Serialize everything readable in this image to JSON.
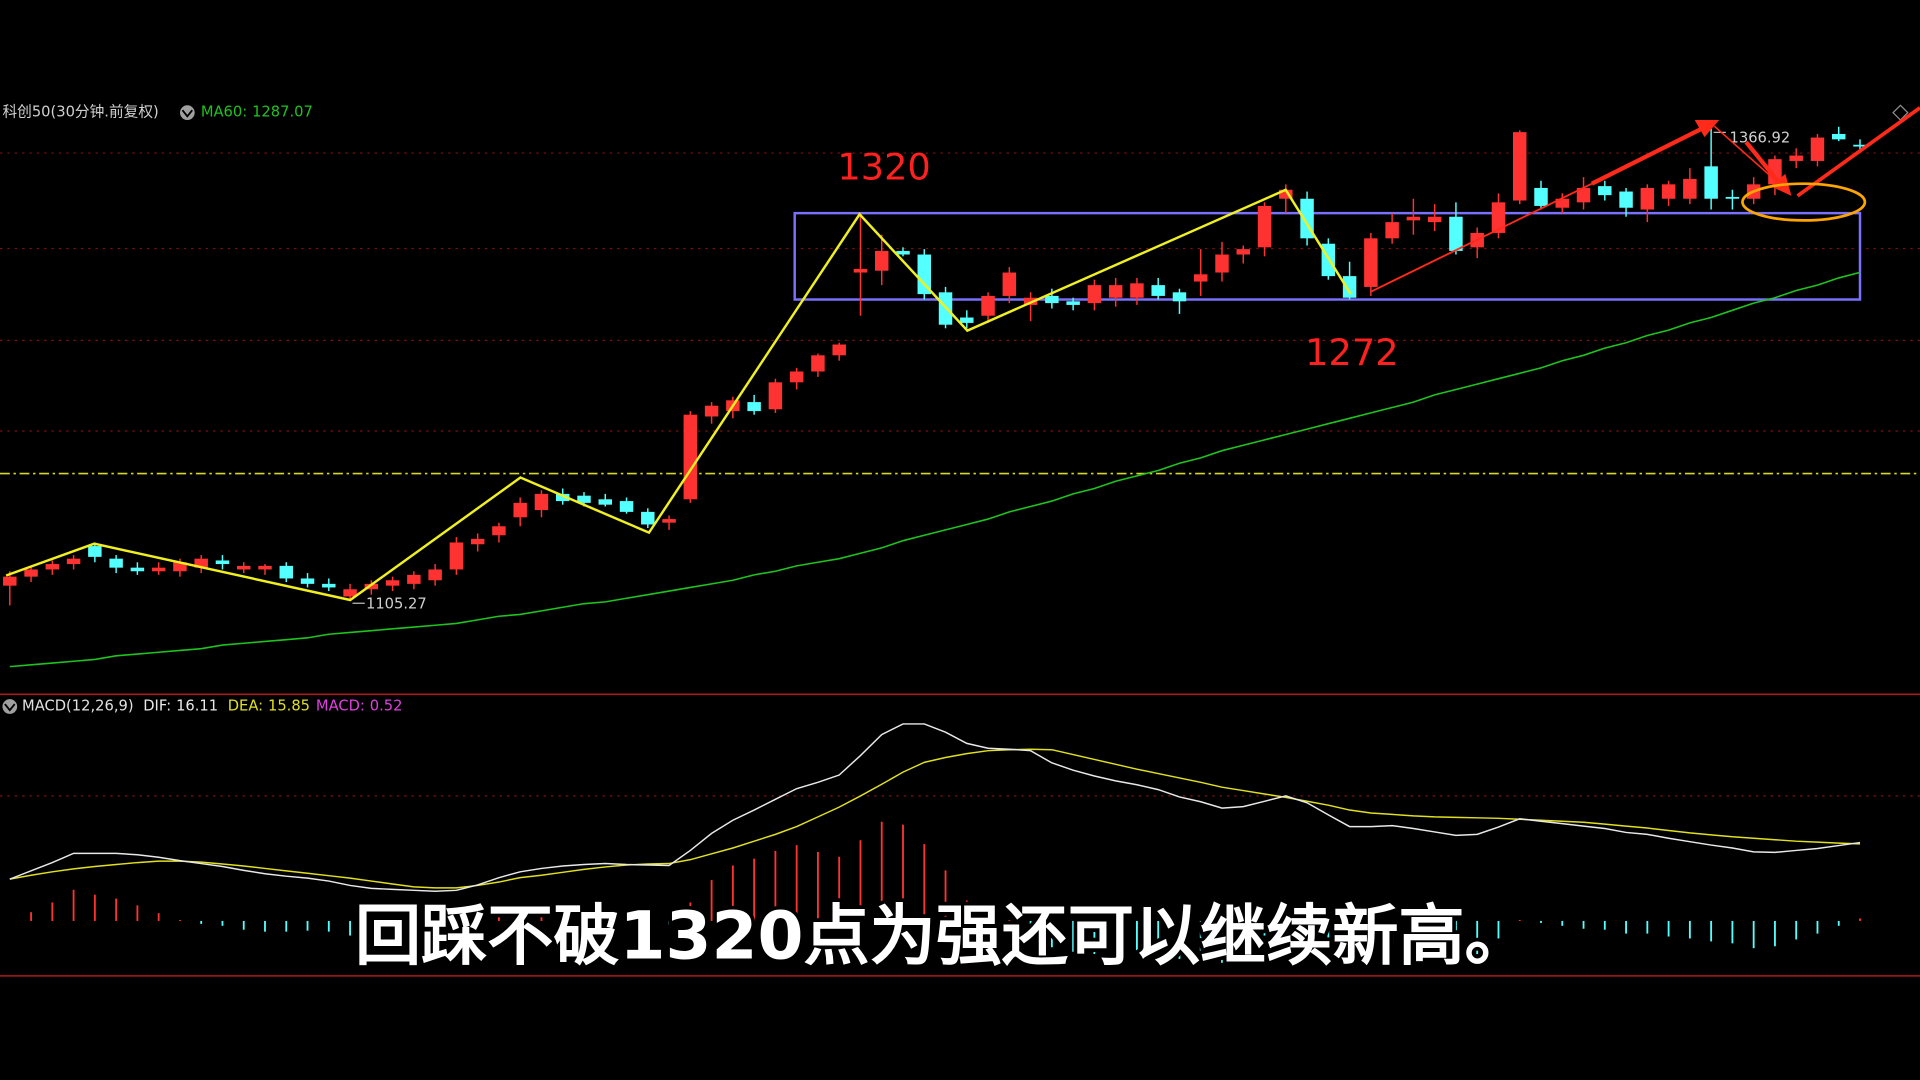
{
  "chart_data": [
    {
      "type": "candlestick",
      "title": "科创50(30分钟.前复权)",
      "up_color": "#ff3232",
      "down_color": "#54ffff",
      "ylim": [
        1054,
        1384
      ],
      "candles": [
        [
          1113,
          1121,
          1102,
          1118
        ],
        [
          1118,
          1124,
          1115,
          1122
        ],
        [
          1122,
          1127,
          1119,
          1125
        ],
        [
          1125,
          1130,
          1122,
          1128
        ],
        [
          1135,
          1137,
          1126,
          1129
        ],
        [
          1128,
          1130,
          1120,
          1123
        ],
        [
          1123,
          1126,
          1119,
          1121
        ],
        [
          1121,
          1126,
          1119,
          1123
        ],
        [
          1121,
          1128,
          1118,
          1126
        ],
        [
          1123,
          1130,
          1120,
          1128
        ],
        [
          1127,
          1130,
          1122,
          1125
        ],
        [
          1122,
          1126,
          1120,
          1124
        ],
        [
          1122,
          1125,
          1119,
          1124
        ],
        [
          1124,
          1126,
          1115,
          1117
        ],
        [
          1117,
          1120,
          1112,
          1114
        ],
        [
          1114,
          1117,
          1110,
          1112
        ],
        [
          1107,
          1114,
          1105.27,
          1111
        ],
        [
          1111,
          1116,
          1108,
          1114
        ],
        [
          1113,
          1118,
          1110,
          1116
        ],
        [
          1114,
          1121,
          1111,
          1119
        ],
        [
          1116,
          1125,
          1113,
          1122
        ],
        [
          1122,
          1140,
          1119,
          1137
        ],
        [
          1136,
          1142,
          1132,
          1139
        ],
        [
          1141,
          1148,
          1137,
          1146
        ],
        [
          1151,
          1162,
          1146,
          1159
        ],
        [
          1155,
          1166,
          1151,
          1164
        ],
        [
          1164,
          1167,
          1158,
          1160
        ],
        [
          1163,
          1165,
          1157,
          1159
        ],
        [
          1161,
          1164,
          1157,
          1158
        ],
        [
          1160,
          1162,
          1153,
          1154
        ],
        [
          1154,
          1156,
          1145,
          1147
        ],
        [
          1148,
          1152,
          1144,
          1150
        ],
        [
          1161,
          1210,
          1159,
          1208
        ],
        [
          1207,
          1215,
          1203,
          1213
        ],
        [
          1210,
          1218,
          1206,
          1216
        ],
        [
          1215,
          1219,
          1208,
          1210
        ],
        [
          1211,
          1228,
          1209,
          1226
        ],
        [
          1226,
          1234,
          1222,
          1232
        ],
        [
          1232,
          1242,
          1229,
          1241
        ],
        [
          1241,
          1248,
          1238,
          1247
        ],
        [
          1287,
          1320,
          1263,
          1289
        ],
        [
          1288,
          1308,
          1280,
          1299
        ],
        [
          1299,
          1301,
          1296,
          1297
        ],
        [
          1297,
          1300,
          1272,
          1275
        ],
        [
          1276,
          1279,
          1256,
          1258
        ],
        [
          1262,
          1266,
          1256,
          1259
        ],
        [
          1263,
          1276,
          1259,
          1274
        ],
        [
          1274,
          1290,
          1270,
          1287
        ],
        [
          1269,
          1276,
          1260,
          1273
        ],
        [
          1274,
          1278,
          1267,
          1270
        ],
        [
          1271,
          1273,
          1266,
          1269
        ],
        [
          1270,
          1283,
          1266,
          1280
        ],
        [
          1273,
          1284,
          1268,
          1280
        ],
        [
          1273,
          1284,
          1269,
          1281
        ],
        [
          1280,
          1284,
          1272,
          1274
        ],
        [
          1276,
          1278,
          1264,
          1271
        ],
        [
          1282,
          1300,
          1274,
          1286
        ],
        [
          1287,
          1304,
          1282,
          1297
        ],
        [
          1297,
          1302,
          1292,
          1300
        ],
        [
          1301,
          1326,
          1296,
          1324
        ],
        [
          1328,
          1336,
          1320,
          1333
        ],
        [
          1328,
          1332,
          1302,
          1306
        ],
        [
          1303,
          1306,
          1283,
          1285
        ],
        [
          1285,
          1293,
          1272,
          1273
        ],
        [
          1279,
          1309,
          1274,
          1306
        ],
        [
          1306,
          1320,
          1303,
          1315
        ],
        [
          1316,
          1328,
          1308,
          1318
        ],
        [
          1315,
          1325,
          1310,
          1318
        ],
        [
          1318,
          1326,
          1297,
          1299
        ],
        [
          1301,
          1312,
          1295,
          1309
        ],
        [
          1309,
          1331,
          1306,
          1326
        ],
        [
          1327,
          1366,
          1325,
          1365
        ],
        [
          1334,
          1338,
          1322,
          1324
        ],
        [
          1323,
          1331,
          1320,
          1328
        ],
        [
          1326,
          1340,
          1322,
          1334
        ],
        [
          1335,
          1338,
          1327,
          1330
        ],
        [
          1332,
          1334,
          1318,
          1323
        ],
        [
          1322,
          1336,
          1315,
          1334
        ],
        [
          1328,
          1338,
          1324,
          1336
        ],
        [
          1328,
          1345,
          1325,
          1339
        ],
        [
          1346,
          1366.92,
          1322,
          1328
        ],
        [
          1329,
          1333,
          1322,
          1328
        ],
        [
          1328,
          1340,
          1325,
          1336
        ],
        [
          1336,
          1352,
          1330,
          1350
        ],
        [
          1349,
          1356,
          1345,
          1352
        ],
        [
          1349,
          1364,
          1346,
          1362
        ],
        [
          1364,
          1368,
          1360,
          1361
        ],
        [
          1358,
          1361,
          1355,
          1357
        ]
      ],
      "series": [
        {
          "name": "MA60:",
          "color": "#1fc31f",
          "values": [
            1068,
            1069,
            1070,
            1071,
            1072,
            1074,
            1075,
            1076,
            1077,
            1078,
            1080,
            1081,
            1082,
            1083,
            1084,
            1086,
            1087,
            1088,
            1089,
            1090,
            1091,
            1092,
            1094,
            1096,
            1097,
            1099,
            1101,
            1103,
            1104,
            1106,
            1108,
            1110,
            1112,
            1114,
            1116,
            1119,
            1121,
            1124,
            1126,
            1128,
            1131,
            1134,
            1138,
            1141,
            1144,
            1147,
            1150,
            1154,
            1157,
            1160,
            1164,
            1167,
            1171,
            1174,
            1177,
            1181,
            1184,
            1188,
            1191,
            1194,
            1197,
            1200,
            1203,
            1206,
            1209,
            1212,
            1215,
            1219,
            1222,
            1225,
            1228,
            1231,
            1234,
            1238,
            1241,
            1245,
            1248,
            1252,
            1255,
            1259,
            1262,
            1266,
            1270,
            1273,
            1277,
            1280,
            1284,
            1287.07
          ]
        }
      ],
      "levels": [
        1320,
        1272
      ],
      "level_color": "#ff2020",
      "reference_line": 1175.3
    },
    {
      "type": "macd",
      "title": "MACD(12,26,9)",
      "up_color": "#ff3232",
      "down_color": "#54ffff",
      "ylim": [
        -11.3,
        47.1
      ],
      "series": [
        {
          "name": "DIF:",
          "color": "#e8e8e8",
          "values": [
            8.6,
            10.3,
            12,
            13.9,
            13.9,
            13.9,
            13.6,
            13.1,
            12.4,
            11.8,
            11.2,
            10.4,
            9.7,
            9.2,
            8.8,
            8.2,
            7.3,
            6.7,
            6.5,
            6.3,
            6.1,
            6.3,
            7.4,
            8.9,
            10.1,
            10.8,
            11.3,
            11.6,
            11.8,
            11.6,
            11.5,
            11.4,
            14.5,
            18,
            20.7,
            22.8,
            25,
            27.2,
            28.5,
            30,
            34,
            38.3,
            40.5,
            40.5,
            38.8,
            36.5,
            35.5,
            35.3,
            35,
            32.5,
            31,
            29.8,
            28.8,
            28,
            27,
            25.5,
            24.5,
            23.2,
            23.5,
            24.6,
            25.7,
            24.3,
            21.8,
            19.4,
            19.4,
            19.6,
            19,
            18.3,
            17.6,
            17.8,
            19.3,
            21,
            20.5,
            20,
            19.5,
            19,
            18.2,
            17.8,
            17,
            16.3,
            15.6,
            15,
            14.2,
            14.1,
            14.5,
            14.9,
            15.5,
            16.11
          ]
        },
        {
          "name": "DEA:",
          "color": "#e0e020",
          "values": [
            8.6,
            9.4,
            10.1,
            10.7,
            11.2,
            11.6,
            12,
            12.3,
            12.3,
            12.1,
            11.7,
            11.3,
            10.8,
            10.3,
            9.8,
            9.3,
            8.8,
            8.2,
            7.6,
            7,
            6.8,
            6.8,
            7.3,
            8,
            8.9,
            9.4,
            10,
            10.6,
            11.1,
            11.5,
            11.7,
            11.8,
            12.6,
            13.8,
            15,
            16.4,
            17.8,
            19.4,
            21.4,
            23.4,
            25.7,
            28.1,
            30.6,
            32.6,
            33.6,
            34.4,
            35,
            35.2,
            35.3,
            35.2,
            34.2,
            33.2,
            32.2,
            31.2,
            30.3,
            29.4,
            28.5,
            27.5,
            26.8,
            26.1,
            25.4,
            24.6,
            23.8,
            22.8,
            22.2,
            21.9,
            21.6,
            21.4,
            21.3,
            21.2,
            21.1,
            20.9,
            20.7,
            20.5,
            20.3,
            19.9,
            19.5,
            19.1,
            18.6,
            18.1,
            17.7,
            17.3,
            17,
            16.7,
            16.4,
            16.2,
            16,
            15.85
          ]
        },
        {
          "name": "MACD:",
          "color": "#e040e0",
          "values": [
            0,
            1.8,
            3.8,
            6.4,
            5.4,
            4.6,
            3.2,
            1.6,
            0.2,
            -0.6,
            -1,
            -1.8,
            -2.2,
            -2.2,
            -2,
            -2.2,
            -3,
            -3,
            -2.2,
            -1.4,
            -1.4,
            -1,
            0.2,
            1.8,
            2.4,
            2.8,
            2.6,
            2,
            1.4,
            0.2,
            -0.4,
            -0.8,
            3.8,
            8.4,
            11.4,
            12.8,
            14.4,
            15.6,
            14.2,
            13.2,
            16.6,
            20.4,
            19.8,
            15.8,
            10.4,
            4.2,
            1,
            0.2,
            -0.6,
            -5.4,
            -6.4,
            -6.8,
            -6.8,
            -6.4,
            -6.6,
            -7.8,
            -8,
            -8.6,
            -6.6,
            -3,
            0.6,
            -0.6,
            -4,
            -6.8,
            -5.6,
            -4.6,
            -5.2,
            -6.2,
            -7.4,
            -6.8,
            -3.6,
            0.2,
            -0.4,
            -1,
            -1.6,
            -1.8,
            -2.6,
            -2.6,
            -3.2,
            -3.6,
            -4.2,
            -4.6,
            -5.6,
            -5.2,
            -3.8,
            -2.6,
            -1,
            0.52
          ]
        }
      ]
    }
  ],
  "caption": "回踩不破1320点为强还可以继续新高。"
}
